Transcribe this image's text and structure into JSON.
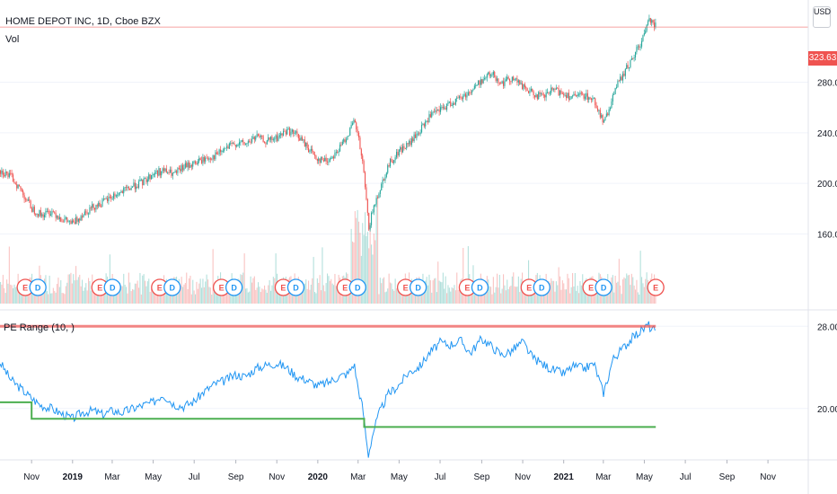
{
  "header": {
    "symbol": "HOME DEPOT INC, 1D, Cboe BZX",
    "volume_label": "Vol",
    "indicator_label": "PE Range (10, )"
  },
  "currency": "USD",
  "last_price_tag": "323.63",
  "colors": {
    "up": "#26a69a",
    "down": "#ef5350",
    "pe_line": "#2196f3",
    "pe_high": "#ef5350",
    "pe_low": "#4caf50",
    "earnings": "#ef5350",
    "dividend": "#2196f3"
  },
  "chart_data": [
    {
      "type": "line",
      "subtype": "candlestick",
      "title": "HOME DEPOT INC, 1D, Cboe BZX",
      "x": [
        "2018-09-15",
        "2018-10-01",
        "2018-10-15",
        "2018-11-01",
        "2018-11-15",
        "2018-12-01",
        "2018-12-15",
        "2019-01-01",
        "2019-01-15",
        "2019-02-01",
        "2019-02-15",
        "2019-03-01",
        "2019-03-15",
        "2019-04-01",
        "2019-04-15",
        "2019-05-01",
        "2019-05-15",
        "2019-06-01",
        "2019-06-15",
        "2019-07-01",
        "2019-07-15",
        "2019-08-01",
        "2019-08-15",
        "2019-09-01",
        "2019-09-15",
        "2019-10-01",
        "2019-10-15",
        "2019-11-01",
        "2019-11-15",
        "2019-12-01",
        "2019-12-15",
        "2020-01-01",
        "2020-01-15",
        "2020-02-01",
        "2020-02-15",
        "2020-02-24",
        "2020-03-01",
        "2020-03-08",
        "2020-03-16",
        "2020-03-23",
        "2020-04-01",
        "2020-04-15",
        "2020-05-01",
        "2020-05-15",
        "2020-06-01",
        "2020-06-15",
        "2020-07-01",
        "2020-07-15",
        "2020-08-01",
        "2020-08-15",
        "2020-09-01",
        "2020-09-15",
        "2020-10-01",
        "2020-10-15",
        "2020-11-01",
        "2020-11-15",
        "2020-12-01",
        "2020-12-15",
        "2021-01-01",
        "2021-01-15",
        "2021-02-01",
        "2021-02-15",
        "2021-03-01",
        "2021-03-08",
        "2021-03-15",
        "2021-04-01",
        "2021-04-15",
        "2021-05-01",
        "2021-05-07",
        "2021-05-12",
        "2021-05-18"
      ],
      "y": [
        210,
        205,
        195,
        180,
        175,
        178,
        172,
        168,
        176,
        182,
        185,
        190,
        193,
        198,
        201,
        208,
        210,
        207,
        213,
        216,
        219,
        222,
        227,
        232,
        231,
        237,
        233,
        236,
        242,
        238,
        229,
        219,
        218,
        227,
        240,
        249,
        235,
        212,
        165,
        180,
        195,
        215,
        226,
        231,
        242,
        253,
        258,
        263,
        268,
        273,
        282,
        287,
        279,
        284,
        276,
        271,
        268,
        274,
        271,
        268,
        270,
        265,
        248,
        256,
        272,
        288,
        301,
        318,
        331,
        329,
        323.63
      ],
      "ylim": [
        100,
        345
      ],
      "y_ticks": [
        160,
        200,
        240,
        280
      ],
      "last_price": 323.63,
      "volume_note": "volume histogram with earnings (E) and dividend (D) markers",
      "events": [
        {
          "date": "2018-11-01",
          "labels": [
            "E",
            "D"
          ]
        },
        {
          "date": "2019-02-20",
          "labels": [
            "E",
            "D"
          ]
        },
        {
          "date": "2019-05-20",
          "labels": [
            "E",
            "D"
          ]
        },
        {
          "date": "2019-08-20",
          "labels": [
            "E",
            "D"
          ]
        },
        {
          "date": "2019-11-20",
          "labels": [
            "E",
            "D"
          ]
        },
        {
          "date": "2020-02-20",
          "labels": [
            "E",
            "D"
          ]
        },
        {
          "date": "2020-05-20",
          "labels": [
            "E",
            "D"
          ]
        },
        {
          "date": "2020-08-20",
          "labels": [
            "E",
            "D"
          ]
        },
        {
          "date": "2020-11-20",
          "labels": [
            "E",
            "D"
          ]
        },
        {
          "date": "2021-02-20",
          "labels": [
            "E",
            "D"
          ]
        },
        {
          "date": "2021-05-18",
          "labels": [
            "E"
          ]
        }
      ]
    },
    {
      "type": "line",
      "title": "PE Range (10, )",
      "x": [
        "2018-09-15",
        "2018-10-01",
        "2018-10-15",
        "2018-11-01",
        "2018-11-15",
        "2018-12-01",
        "2018-12-15",
        "2019-01-01",
        "2019-01-15",
        "2019-02-01",
        "2019-02-15",
        "2019-03-01",
        "2019-03-15",
        "2019-04-01",
        "2019-04-15",
        "2019-05-01",
        "2019-05-15",
        "2019-06-01",
        "2019-06-15",
        "2019-07-01",
        "2019-07-15",
        "2019-08-01",
        "2019-08-15",
        "2019-09-01",
        "2019-09-15",
        "2019-10-01",
        "2019-10-15",
        "2019-11-01",
        "2019-11-15",
        "2019-12-01",
        "2019-12-15",
        "2020-01-01",
        "2020-01-15",
        "2020-02-01",
        "2020-02-15",
        "2020-02-24",
        "2020-03-01",
        "2020-03-08",
        "2020-03-16",
        "2020-03-23",
        "2020-04-01",
        "2020-04-15",
        "2020-05-01",
        "2020-05-15",
        "2020-06-01",
        "2020-06-15",
        "2020-07-01",
        "2020-07-15",
        "2020-08-01",
        "2020-08-15",
        "2020-09-01",
        "2020-09-15",
        "2020-10-01",
        "2020-10-15",
        "2020-11-01",
        "2020-11-15",
        "2020-12-01",
        "2020-12-15",
        "2021-01-01",
        "2021-01-15",
        "2021-02-01",
        "2021-02-15",
        "2021-03-01",
        "2021-03-08",
        "2021-03-15",
        "2021-04-01",
        "2021-04-15",
        "2021-05-01",
        "2021-05-07",
        "2021-05-12",
        "2021-05-18"
      ],
      "series": [
        {
          "values": [
            24.5,
            22.8,
            22.0,
            21.0,
            20.3,
            20.0,
            19.5,
            19.0,
            19.6,
            19.8,
            19.4,
            19.8,
            19.6,
            20.0,
            20.3,
            20.6,
            21.4,
            20.4,
            20.2,
            20.7,
            21.6,
            22.4,
            22.7,
            23.3,
            23.1,
            23.9,
            24.2,
            24.4,
            24.0,
            23.1,
            22.8,
            22.2,
            22.5,
            23.1,
            23.4,
            24.4,
            22.0,
            20.0,
            15.4,
            17.6,
            19.5,
            21.4,
            22.3,
            23.5,
            24.1,
            25.4,
            26.4,
            26.2,
            26.6,
            25.4,
            26.8,
            26.1,
            25.2,
            25.6,
            26.5,
            25.0,
            24.3,
            23.8,
            23.4,
            24.1,
            23.9,
            24.4,
            21.5,
            23.0,
            24.8,
            26.0,
            27.0,
            27.8,
            28.2,
            27.6,
            27.7
          ]
        },
        {
          "x": [
            "2018-09-15",
            "2018-11-01",
            "2018-11-01",
            "2020-03-10",
            "2020-03-10",
            "2021-05-18"
          ],
          "values": [
            20.6,
            20.6,
            19.0,
            19.0,
            18.2,
            18.2
          ]
        },
        {
          "x": [
            "2018-09-15",
            "2021-05-18"
          ],
          "values": [
            28.0,
            28.0
          ]
        }
      ],
      "ylim": [
        15,
        29.6
      ],
      "y_ticks": [
        20.0,
        28.0
      ]
    }
  ],
  "x_axis": {
    "labels": [
      "Nov",
      "2019",
      "Mar",
      "May",
      "Jul",
      "Sep",
      "Nov",
      "2020",
      "Mar",
      "May",
      "Jul",
      "Sep",
      "Nov",
      "2021",
      "Mar",
      "May",
      "Jul",
      "Sep",
      "Nov"
    ],
    "bold": [
      "2019",
      "2020",
      "2021"
    ]
  }
}
